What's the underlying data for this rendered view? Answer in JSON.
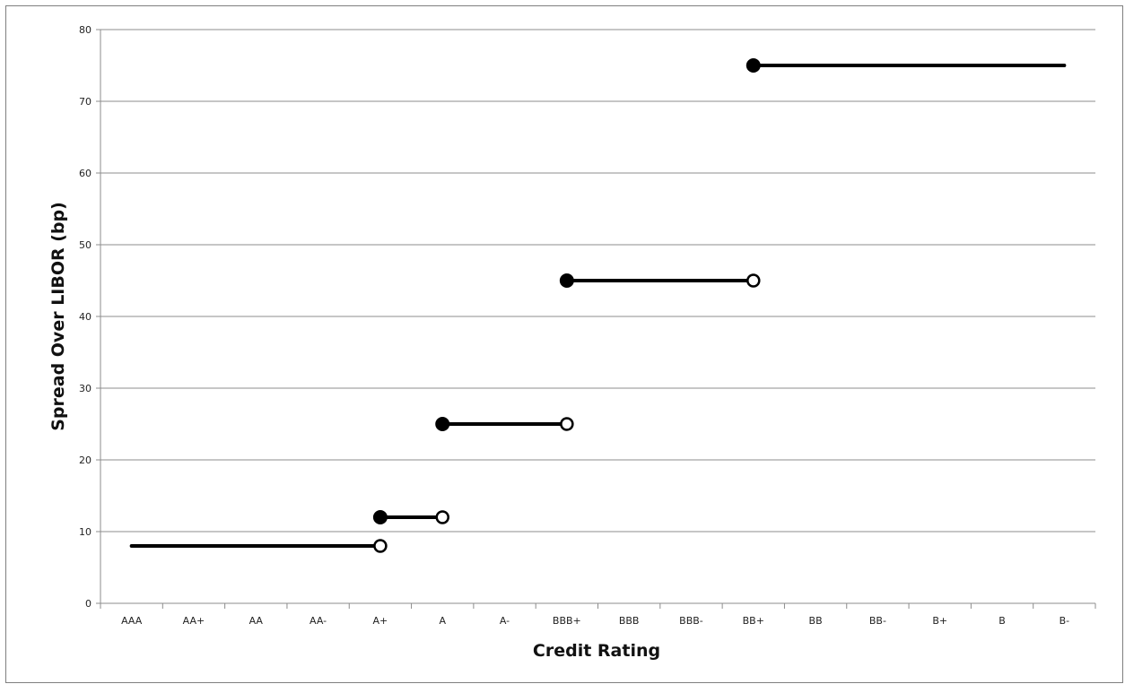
{
  "chart_data": {
    "type": "line",
    "title": "",
    "xlabel": "Credit Rating",
    "ylabel": "Spread Over LIBOR (bp)",
    "categories": [
      "AAA",
      "AA+",
      "AA",
      "AA-",
      "A+",
      "A",
      "A-",
      "BBB+",
      "BBB",
      "BBB-",
      "BB+",
      "BB",
      "BB-",
      "B+",
      "B",
      "B-"
    ],
    "ylim": [
      0,
      80
    ],
    "yticks": [
      0,
      10,
      20,
      30,
      40,
      50,
      60,
      70,
      80
    ],
    "grid": "horizontal",
    "legend": "none",
    "series": [
      {
        "x_start": "AAA",
        "x_end": "A+",
        "value": 8,
        "start_marker": "none",
        "end_marker": "open"
      },
      {
        "x_start": "A+",
        "x_end": "A",
        "value": 12,
        "start_marker": "filled",
        "end_marker": "open"
      },
      {
        "x_start": "A",
        "x_end": "BBB+",
        "value": 25,
        "start_marker": "filled",
        "end_marker": "open"
      },
      {
        "x_start": "BBB+",
        "x_end": "BB+",
        "value": 45,
        "start_marker": "filled",
        "end_marker": "open"
      },
      {
        "x_start": "BB+",
        "x_end": "B-",
        "value": 75,
        "start_marker": "filled",
        "end_marker": "none"
      }
    ],
    "colors": {
      "line": "#000000",
      "grid": "#8c8c8c",
      "axis": "#8c8c8c"
    }
  }
}
